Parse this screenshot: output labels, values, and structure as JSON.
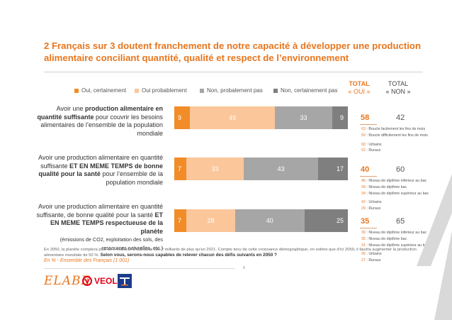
{
  "title": "2 Français sur 3 doutent franchement de notre capacité à développer une production alimentaire conciliant quantité, qualité et respect de l’environnement",
  "colors": {
    "accent": "#E8761E",
    "oui_cert": "#F28C28",
    "oui_prob": "#FAC69A",
    "non_prob": "#A6A6A6",
    "non_cert": "#7F7F7F"
  },
  "chart_data": {
    "type": "bar",
    "orientation": "horizontal-stacked",
    "legend_position": "top",
    "series_names": [
      "Oui, certainement",
      "Oui probablement",
      "Non, probalement pas",
      "Non, certainement pas"
    ],
    "totals_header": {
      "oui_line1": "TOTAL",
      "oui_line2": "« OUI »",
      "non_line1": "TOTAL",
      "non_line2": "« NON »"
    },
    "questions": [
      {
        "values": [
          9,
          49,
          33,
          9
        ],
        "total_oui": "58",
        "total_non": "42",
        "details": [
          {
            "n": "63",
            "label": " : Boucle facilement les fins de mois"
          },
          {
            "n": "50",
            "label": " : Boucle difficilement les fins de mois"
          },
          {
            "gap": true
          },
          {
            "n": "60",
            "label": " : Urbains"
          },
          {
            "n": "52",
            "label": " : Ruraux"
          }
        ]
      },
      {
        "values": [
          7,
          33,
          43,
          17
        ],
        "total_oui": "40",
        "total_non": "60",
        "details": [
          {
            "n": "46",
            "label": " : Niveau de diplôme inférieur au bac"
          },
          {
            "n": "39",
            "label": " : Niveau de diplôme bac"
          },
          {
            "n": "34",
            "label": " : Niveau de diplôme supérieur au bac"
          },
          {
            "gap": true
          },
          {
            "n": "42",
            "label": " : Urbains"
          },
          {
            "n": "29",
            "label": " : Ruraux"
          }
        ]
      },
      {
        "values": [
          7,
          28,
          40,
          25
        ],
        "total_oui": "35",
        "total_non": "65",
        "details": [
          {
            "n": "39",
            "label": " : Niveau de diplôme inférieur au bac"
          },
          {
            "n": "35",
            "label": " : Niveau de diplôme bac"
          },
          {
            "n": "31",
            "label": " : Niveau de diplôme supérieur au bac"
          },
          {
            "gap": true
          },
          {
            "n": "36",
            "label": " : Urbains"
          },
          {
            "n": "27",
            "label": " : Ruraux"
          }
        ]
      }
    ]
  },
  "q1": {
    "a": "Avoir une ",
    "b": "production alimentaire en quantité suffisante",
    "c": " pour couvrir les besoins alimentaires de l’ensemble de la population mondiale"
  },
  "q2": {
    "a": "Avoir une production alimentaire en quantité suffisante ",
    "b": "ET EN MEME TEMPS de bonne qualité pour la santé",
    "c": " pour l’ensemble de la population mondiale"
  },
  "q3": {
    "a": "Avoir une production alimentaire en quantité suffisante, de bonne qualité pour la santé ",
    "b": "ET EN MEME TEMPS respectueuse de la planète",
    "note": "(émissions de CO2, exploitation des sols, des ressources naturelles, etc.)"
  },
  "footnote": {
    "text": "En 2050, la planète comptera plus de 9 milliards d’habitants soit 2 milliards de plus qu’en 2021. Compte tenu de cette croissance démographique, on estime que d’ici 2050, il faudra augmenter la production alimentaire mondiale de 50 %. ",
    "bold": "Selon vous, serons-nous capables de relever chacun des défis suivants en 2050 ?"
  },
  "source": "En % - Ensemble des Français (1 001)",
  "page_number": "5",
  "logos": {
    "elabe": "ELABE",
    "veolia": "VEOLIA"
  }
}
